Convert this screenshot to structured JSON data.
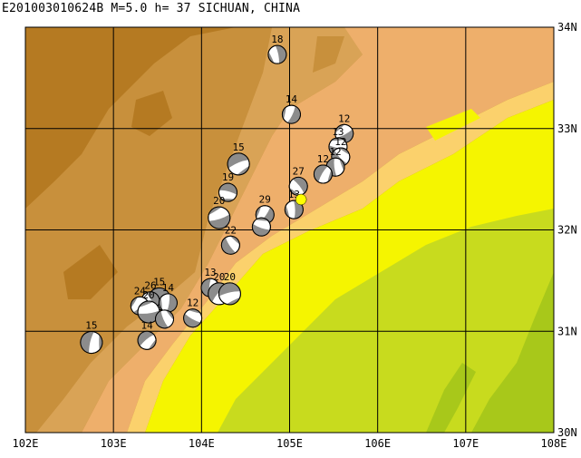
{
  "header": {
    "title": "E201003010624B M=5.0 h= 37 SICHUAN, CHINA"
  },
  "map": {
    "lon_range": [
      102,
      108
    ],
    "lat_range": [
      30,
      34
    ],
    "lon_ticks": [
      "102E",
      "103E",
      "104E",
      "105E",
      "106E",
      "107E",
      "108E"
    ],
    "lat_ticks": [
      "30N",
      "31N",
      "32N",
      "33N",
      "34N"
    ],
    "colors": {
      "high_mountain": "#b57a22",
      "mountain": "#c8903c",
      "upper_slope": "#d9a356",
      "lower_slope": "#eeaf6b",
      "foothill": "#fbd16c",
      "plain_yellow": "#f5f500",
      "basin_green": "#c8db1e",
      "deep_green": "#a8c81a",
      "beachball_dark": "#8c8c8c",
      "grid": "#000000",
      "epicenter": "#ffff00"
    },
    "events": [
      {
        "lon": 104.86,
        "lat": 33.73,
        "label": "18"
      },
      {
        "lon": 105.02,
        "lat": 33.14,
        "label": "14"
      },
      {
        "lon": 105.62,
        "lat": 32.95,
        "label": "12"
      },
      {
        "lon": 105.55,
        "lat": 32.82,
        "label": "13"
      },
      {
        "lon": 105.58,
        "lat": 32.72,
        "label": "12"
      },
      {
        "lon": 105.52,
        "lat": 32.62,
        "label": "12"
      },
      {
        "lon": 105.38,
        "lat": 32.55,
        "label": "12"
      },
      {
        "lon": 104.42,
        "lat": 32.65,
        "label": "15"
      },
      {
        "lon": 104.3,
        "lat": 32.37,
        "label": "19"
      },
      {
        "lon": 105.1,
        "lat": 32.43,
        "label": "27"
      },
      {
        "lon": 105.05,
        "lat": 32.2,
        "label": "13"
      },
      {
        "lon": 104.72,
        "lat": 32.15,
        "label": "29"
      },
      {
        "lon": 104.2,
        "lat": 32.12,
        "label": "20"
      },
      {
        "lon": 104.68,
        "lat": 32.03,
        "label": ""
      },
      {
        "lon": 104.33,
        "lat": 31.85,
        "label": "22"
      },
      {
        "lon": 104.1,
        "lat": 31.43,
        "label": "13"
      },
      {
        "lon": 104.2,
        "lat": 31.37,
        "label": "20"
      },
      {
        "lon": 104.32,
        "lat": 31.37,
        "label": "20"
      },
      {
        "lon": 103.52,
        "lat": 31.32,
        "label": "15"
      },
      {
        "lon": 103.42,
        "lat": 31.3,
        "label": "26"
      },
      {
        "lon": 103.62,
        "lat": 31.28,
        "label": "14"
      },
      {
        "lon": 103.3,
        "lat": 31.25,
        "label": "24"
      },
      {
        "lon": 103.4,
        "lat": 31.19,
        "label": "20"
      },
      {
        "lon": 103.9,
        "lat": 31.13,
        "label": "12"
      },
      {
        "lon": 103.58,
        "lat": 31.12,
        "label": ""
      },
      {
        "lon": 102.75,
        "lat": 30.89,
        "label": "15"
      },
      {
        "lon": 103.38,
        "lat": 30.91,
        "label": "14"
      }
    ],
    "epicenter": {
      "lon": 105.13,
      "lat": 32.3
    }
  }
}
